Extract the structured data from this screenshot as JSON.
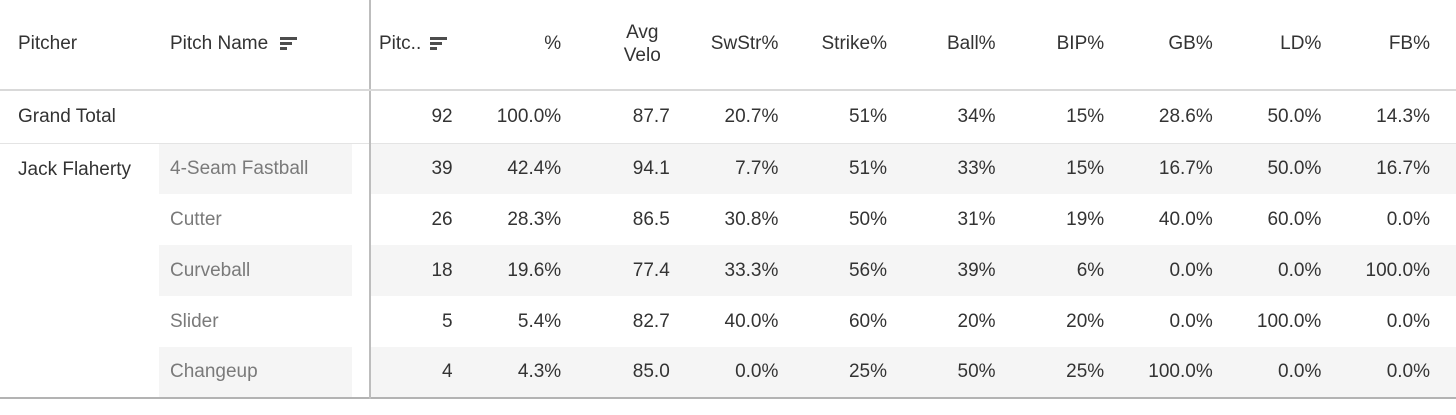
{
  "chart_data": {
    "type": "table",
    "columns": [
      {
        "label": "Pitcher"
      },
      {
        "label": "Pitch Name",
        "sorted": true
      },
      {
        "label": "Pitc..",
        "sorted": true
      },
      {
        "label": "%"
      },
      {
        "label": "Avg Velo"
      },
      {
        "label": "SwStr%"
      },
      {
        "label": "Strike%"
      },
      {
        "label": "Ball%"
      },
      {
        "label": "BIP%"
      },
      {
        "label": "GB%"
      },
      {
        "label": "LD%"
      },
      {
        "label": "FB%"
      }
    ],
    "grand_total": {
      "label": "Grand Total",
      "values": [
        "92",
        "100.0%",
        "87.7",
        "20.7%",
        "51%",
        "34%",
        "15%",
        "28.6%",
        "50.0%",
        "14.3%"
      ]
    },
    "group": {
      "pitcher": "Jack Flaherty",
      "rows": [
        {
          "pitch_name": "4-Seam Fastball",
          "values": [
            "39",
            "42.4%",
            "94.1",
            "7.7%",
            "51%",
            "33%",
            "15%",
            "16.7%",
            "50.0%",
            "16.7%"
          ]
        },
        {
          "pitch_name": "Cutter",
          "values": [
            "26",
            "28.3%",
            "86.5",
            "30.8%",
            "50%",
            "31%",
            "19%",
            "40.0%",
            "60.0%",
            "0.0%"
          ]
        },
        {
          "pitch_name": "Curveball",
          "values": [
            "18",
            "19.6%",
            "77.4",
            "33.3%",
            "56%",
            "39%",
            "6%",
            "0.0%",
            "0.0%",
            "100.0%"
          ]
        },
        {
          "pitch_name": "Slider",
          "values": [
            "5",
            "5.4%",
            "82.7",
            "40.0%",
            "60%",
            "20%",
            "20%",
            "0.0%",
            "100.0%",
            "0.0%"
          ]
        },
        {
          "pitch_name": "Changeup",
          "values": [
            "4",
            "4.3%",
            "85.0",
            "0.0%",
            "25%",
            "50%",
            "25%",
            "100.0%",
            "0.0%",
            "0.0%"
          ]
        }
      ]
    }
  },
  "colors": {
    "row_band": "#f5f5f5",
    "header_text": "#333333",
    "value_text": "#333333",
    "pitch_name_text": "#7a7a7a",
    "divider": "#bdbdbd",
    "header_border": "#d9d9d9",
    "grand_total_border": "#e4e4e4",
    "table_bottom_border": "#b3b3b3",
    "sort_icon": "#4d4d4d"
  }
}
